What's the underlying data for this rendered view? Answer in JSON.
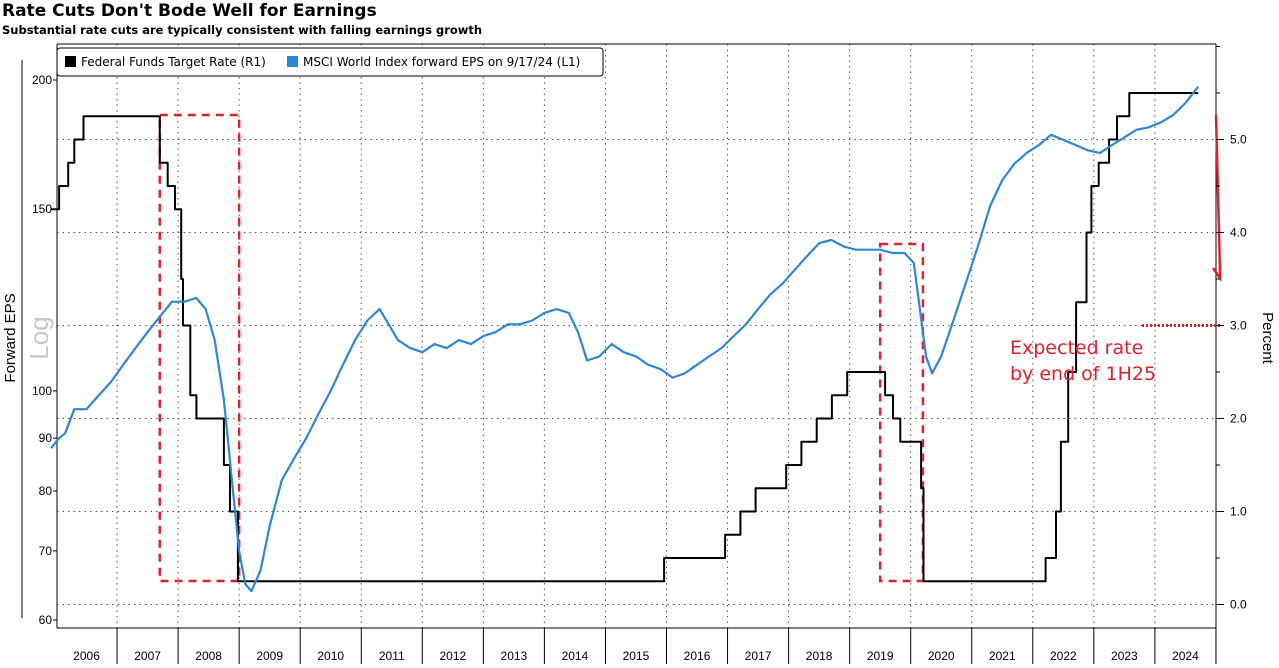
{
  "chart_data": {
    "type": "line",
    "title": "Rate Cuts Don't Bode Well for Earnings",
    "subtitle": "Substantial rate cuts are typically consistent with falling earnings growth",
    "left_axis": {
      "label": "Forward EPS",
      "scale_label": "Log",
      "scale": "log",
      "ticks": [
        60,
        70,
        80,
        90,
        100,
        150,
        200
      ],
      "range": [
        60,
        210
      ]
    },
    "right_axis": {
      "label": "Percent",
      "ticks": [
        "0.0",
        "1.0",
        "2.0",
        "3.0",
        "4.0",
        "5.0"
      ],
      "range": [
        -0.25,
        6.0
      ]
    },
    "x_labels": [
      "2006",
      "2007",
      "2008",
      "2009",
      "2010",
      "2011",
      "2012",
      "2013",
      "2014",
      "2015",
      "2016",
      "2017",
      "2018",
      "2019",
      "2020",
      "2021",
      "2022",
      "2023",
      "2024"
    ],
    "grid": true,
    "legend_position": "top-left",
    "legend": [
      {
        "label": "Federal Funds Target Rate (R1)",
        "color": "#000000"
      },
      {
        "label": "MSCI World Index forward EPS  on 9/17/24 (L1)",
        "color": "#2f86d6"
      }
    ],
    "annotation": {
      "line1": "Expected rate",
      "line2": "by end of 1H25",
      "value": 3.0,
      "color": "#e0202f"
    },
    "highlight_periods": [
      {
        "start": 2007.7,
        "end": 2009.0
      },
      {
        "start": 2019.5,
        "end": 2020.2
      }
    ],
    "series": [
      {
        "name": "Federal Funds Target Rate (R1)",
        "axis": "right",
        "color": "#000000",
        "step": true,
        "points": [
          [
            2005.92,
            4.25
          ],
          [
            2006.05,
            4.5
          ],
          [
            2006.2,
            4.75
          ],
          [
            2006.3,
            5.0
          ],
          [
            2006.45,
            5.25
          ],
          [
            2007.7,
            4.75
          ],
          [
            2007.83,
            4.5
          ],
          [
            2007.95,
            4.25
          ],
          [
            2008.05,
            3.5
          ],
          [
            2008.08,
            3.0
          ],
          [
            2008.2,
            2.25
          ],
          [
            2008.3,
            2.0
          ],
          [
            2008.75,
            1.5
          ],
          [
            2008.85,
            1.0
          ],
          [
            2008.98,
            0.25
          ],
          [
            2015.96,
            0.5
          ],
          [
            2016.96,
            0.75
          ],
          [
            2017.21,
            1.0
          ],
          [
            2017.46,
            1.25
          ],
          [
            2017.96,
            1.5
          ],
          [
            2018.21,
            1.75
          ],
          [
            2018.46,
            2.0
          ],
          [
            2018.71,
            2.25
          ],
          [
            2018.96,
            2.5
          ],
          [
            2019.58,
            2.25
          ],
          [
            2019.71,
            2.0
          ],
          [
            2019.83,
            1.75
          ],
          [
            2020.17,
            1.25
          ],
          [
            2020.21,
            0.25
          ],
          [
            2022.21,
            0.5
          ],
          [
            2022.38,
            1.0
          ],
          [
            2022.46,
            1.75
          ],
          [
            2022.58,
            2.5
          ],
          [
            2022.71,
            3.25
          ],
          [
            2022.88,
            4.0
          ],
          [
            2022.96,
            4.5
          ],
          [
            2023.08,
            4.75
          ],
          [
            2023.25,
            5.0
          ],
          [
            2023.38,
            5.25
          ],
          [
            2023.58,
            5.5
          ],
          [
            2024.71,
            5.5
          ]
        ]
      },
      {
        "name": "MSCI World Index forward EPS  on 9/17/24 (L1)",
        "axis": "left",
        "color": "#2f86d6",
        "points": [
          [
            2005.92,
            88
          ],
          [
            2006.05,
            90
          ],
          [
            2006.15,
            91
          ],
          [
            2006.3,
            96
          ],
          [
            2006.5,
            96
          ],
          [
            2006.7,
            99
          ],
          [
            2006.9,
            102
          ],
          [
            2007.1,
            106
          ],
          [
            2007.3,
            110
          ],
          [
            2007.5,
            114
          ],
          [
            2007.7,
            118
          ],
          [
            2007.9,
            122
          ],
          [
            2008.1,
            122
          ],
          [
            2008.3,
            123
          ],
          [
            2008.45,
            120
          ],
          [
            2008.6,
            112
          ],
          [
            2008.75,
            98
          ],
          [
            2008.9,
            80
          ],
          [
            2009.0,
            70
          ],
          [
            2009.1,
            65
          ],
          [
            2009.2,
            64
          ],
          [
            2009.35,
            67
          ],
          [
            2009.5,
            74
          ],
          [
            2009.7,
            82
          ],
          [
            2009.9,
            86
          ],
          [
            2010.1,
            90
          ],
          [
            2010.3,
            95
          ],
          [
            2010.5,
            100
          ],
          [
            2010.7,
            106
          ],
          [
            2010.9,
            112
          ],
          [
            2011.1,
            117
          ],
          [
            2011.3,
            120
          ],
          [
            2011.45,
            116
          ],
          [
            2011.6,
            112
          ],
          [
            2011.8,
            110
          ],
          [
            2012.0,
            109
          ],
          [
            2012.2,
            111
          ],
          [
            2012.4,
            110
          ],
          [
            2012.6,
            112
          ],
          [
            2012.8,
            111
          ],
          [
            2013.0,
            113
          ],
          [
            2013.2,
            114
          ],
          [
            2013.4,
            116
          ],
          [
            2013.6,
            116
          ],
          [
            2013.8,
            117
          ],
          [
            2014.0,
            119
          ],
          [
            2014.2,
            120
          ],
          [
            2014.4,
            119
          ],
          [
            2014.55,
            114
          ],
          [
            2014.7,
            107
          ],
          [
            2014.9,
            108
          ],
          [
            2015.1,
            111
          ],
          [
            2015.3,
            109
          ],
          [
            2015.5,
            108
          ],
          [
            2015.7,
            106
          ],
          [
            2015.9,
            105
          ],
          [
            2016.1,
            103
          ],
          [
            2016.3,
            104
          ],
          [
            2016.5,
            106
          ],
          [
            2016.7,
            108
          ],
          [
            2016.9,
            110
          ],
          [
            2017.1,
            113
          ],
          [
            2017.3,
            116
          ],
          [
            2017.5,
            120
          ],
          [
            2017.7,
            124
          ],
          [
            2017.9,
            127
          ],
          [
            2018.1,
            131
          ],
          [
            2018.3,
            135
          ],
          [
            2018.5,
            139
          ],
          [
            2018.7,
            140
          ],
          [
            2018.9,
            138
          ],
          [
            2019.1,
            137
          ],
          [
            2019.3,
            137
          ],
          [
            2019.5,
            137
          ],
          [
            2019.7,
            136
          ],
          [
            2019.9,
            136
          ],
          [
            2020.05,
            133
          ],
          [
            2020.15,
            120
          ],
          [
            2020.25,
            108
          ],
          [
            2020.35,
            104
          ],
          [
            2020.5,
            108
          ],
          [
            2020.7,
            117
          ],
          [
            2020.9,
            127
          ],
          [
            2021.1,
            138
          ],
          [
            2021.3,
            151
          ],
          [
            2021.5,
            160
          ],
          [
            2021.7,
            166
          ],
          [
            2021.9,
            170
          ],
          [
            2022.1,
            173
          ],
          [
            2022.3,
            177
          ],
          [
            2022.5,
            175
          ],
          [
            2022.7,
            173
          ],
          [
            2022.9,
            171
          ],
          [
            2023.1,
            170
          ],
          [
            2023.3,
            173
          ],
          [
            2023.5,
            176
          ],
          [
            2023.7,
            179
          ],
          [
            2023.9,
            180
          ],
          [
            2024.1,
            182
          ],
          [
            2024.3,
            185
          ],
          [
            2024.5,
            190
          ],
          [
            2024.71,
            197
          ]
        ]
      }
    ]
  }
}
